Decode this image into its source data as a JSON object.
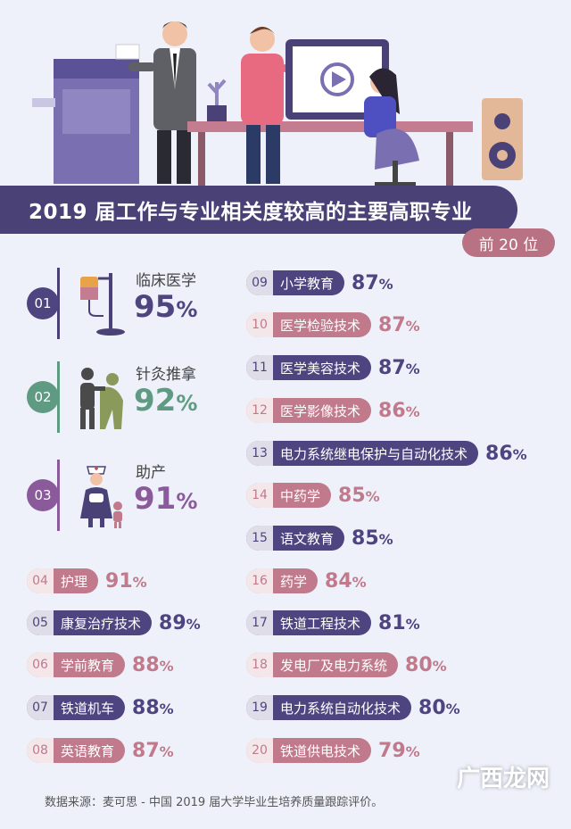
{
  "title": "2019 届工作与专业相关度较高的主要高职专业",
  "rank_tag": "前 20 位",
  "source": "数据来源：麦可思 - 中国 2019 届大学毕业生培养质量跟踪评价。",
  "watermark_text": "广西龙网",
  "colors": {
    "purple": "#4e4580",
    "pink": "#c07a8c",
    "green": "#5f9a82",
    "title_bg": "#4a4277"
  },
  "chart_data": {
    "type": "table",
    "title": "2019 届工作与专业相关度较高的主要高职专业",
    "unit": "%",
    "items": [
      {
        "rank": "01",
        "name": "临床医学",
        "value": 95,
        "icon": "iv-drip-icon"
      },
      {
        "rank": "02",
        "name": "针灸推拿",
        "value": 92,
        "icon": "massage-icon"
      },
      {
        "rank": "03",
        "name": "助产",
        "value": 91,
        "icon": "nurse-child-icon"
      },
      {
        "rank": "04",
        "name": "护理",
        "value": 91
      },
      {
        "rank": "05",
        "name": "康复治疗技术",
        "value": 89
      },
      {
        "rank": "06",
        "name": "学前教育",
        "value": 88
      },
      {
        "rank": "07",
        "name": "铁道机车",
        "value": 88
      },
      {
        "rank": "08",
        "name": "英语教育",
        "value": 87
      },
      {
        "rank": "09",
        "name": "小学教育",
        "value": 87
      },
      {
        "rank": "10",
        "name": "医学检验技术",
        "value": 87
      },
      {
        "rank": "11",
        "name": "医学美容技术",
        "value": 87
      },
      {
        "rank": "12",
        "name": "医学影像技术",
        "value": 86
      },
      {
        "rank": "13",
        "name": "电力系统继电保护与自动化技术",
        "value": 86
      },
      {
        "rank": "14",
        "name": "中药学",
        "value": 85
      },
      {
        "rank": "15",
        "name": "语文教育",
        "value": 85
      },
      {
        "rank": "16",
        "name": "药学",
        "value": 84
      },
      {
        "rank": "17",
        "name": "铁道工程技术",
        "value": 81
      },
      {
        "rank": "18",
        "name": "发电厂及电力系统",
        "value": 80
      },
      {
        "rank": "19",
        "name": "电力系统自动化技术",
        "value": 80
      },
      {
        "rank": "20",
        "name": "铁道供电技术",
        "value": 79
      }
    ]
  }
}
